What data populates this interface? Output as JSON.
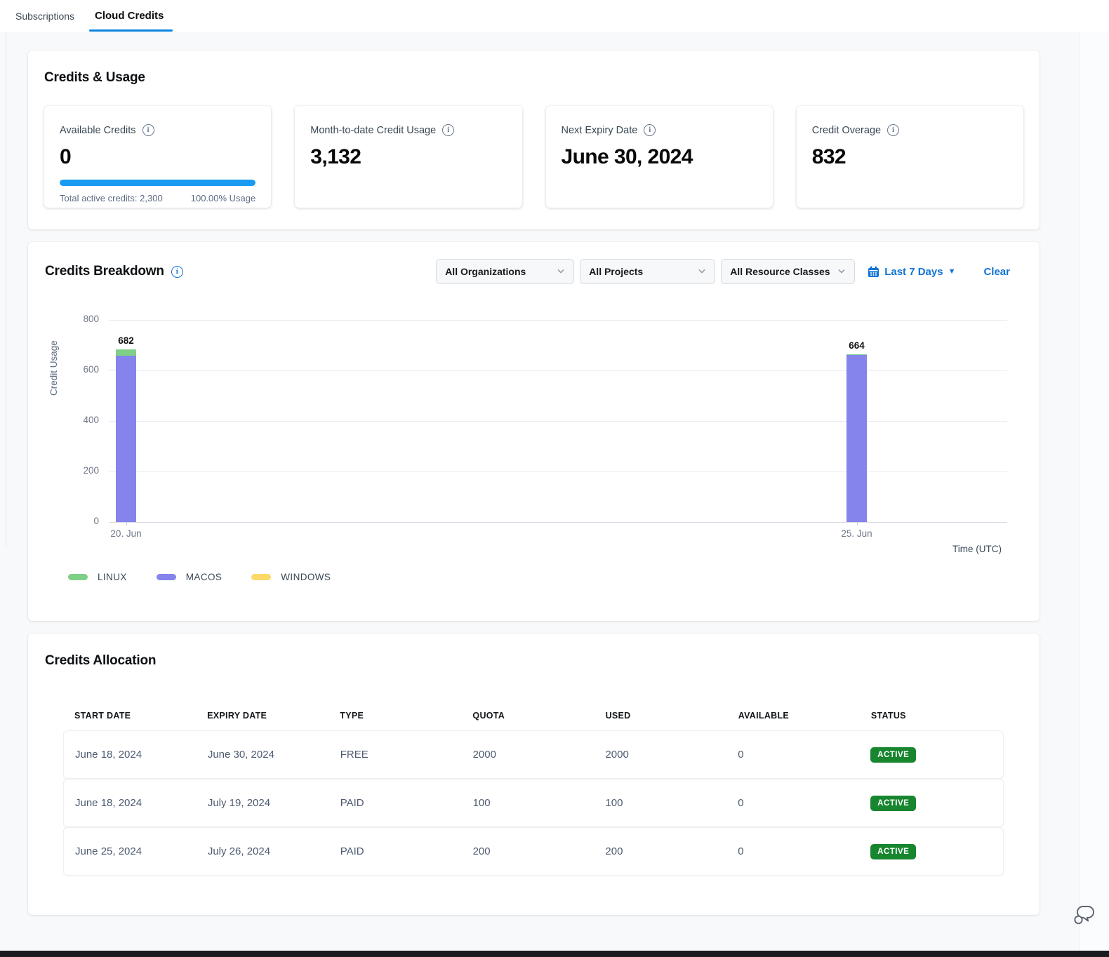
{
  "tabs": {
    "subscriptions": "Subscriptions",
    "cloud_credits": "Cloud Credits"
  },
  "credits_usage": {
    "title": "Credits & Usage",
    "metrics": [
      {
        "label": "Available Credits",
        "value": "0",
        "progress_pct": 100,
        "footer_left": "Total active credits: 2,300",
        "footer_right": "100.00% Usage"
      },
      {
        "label": "Month-to-date Credit Usage",
        "value": "3,132"
      },
      {
        "label": "Next Expiry Date",
        "value": "June 30, 2024"
      },
      {
        "label": "Credit Overage",
        "value": "832"
      }
    ]
  },
  "credits_breakdown": {
    "title": "Credits Breakdown",
    "filters": {
      "organizations": "All Organizations",
      "projects": "All Projects",
      "resource_classes": "All Resource Classes",
      "date_range": "Last 7 Days",
      "clear": "Clear"
    }
  },
  "chart_data": {
    "type": "bar",
    "stacked": true,
    "title": "Credits Breakdown",
    "xlabel": "Time (UTC)",
    "ylabel": "Credit Usage",
    "ylim": [
      0,
      800
    ],
    "yticks": [
      0,
      200,
      400,
      600,
      800
    ],
    "grid": "horizontal",
    "categories": [
      "20. Jun",
      "25. Jun"
    ],
    "series": [
      {
        "name": "LINUX",
        "color": "#7ED087",
        "values": [
          25,
          2
        ]
      },
      {
        "name": "MACOS",
        "color": "#8583EC",
        "values": [
          657,
          662
        ]
      },
      {
        "name": "WINDOWS",
        "color": "#FCD968",
        "values": [
          0,
          0
        ]
      }
    ],
    "totals": [
      682,
      664
    ],
    "legend_position": "bottom"
  },
  "credits_allocation": {
    "title": "Credits Allocation",
    "columns": [
      "START DATE",
      "EXPIRY DATE",
      "TYPE",
      "QUOTA",
      "USED",
      "AVAILABLE",
      "STATUS"
    ],
    "rows": [
      {
        "start_date": "June 18, 2024",
        "expiry_date": "June 30, 2024",
        "type": "FREE",
        "quota": "2000",
        "used": "2000",
        "available": "0",
        "status": "ACTIVE"
      },
      {
        "start_date": "June 18, 2024",
        "expiry_date": "July 19, 2024",
        "type": "PAID",
        "quota": "100",
        "used": "100",
        "available": "0",
        "status": "ACTIVE"
      },
      {
        "start_date": "June 25, 2024",
        "expiry_date": "July 26, 2024",
        "type": "PAID",
        "quota": "200",
        "used": "200",
        "available": "0",
        "status": "ACTIVE"
      }
    ]
  },
  "colors": {
    "accent_blue": "#1274D4",
    "tab_underline": "#0B83DF",
    "progress_blue": "#189BF0",
    "badge_green": "#17862F"
  }
}
